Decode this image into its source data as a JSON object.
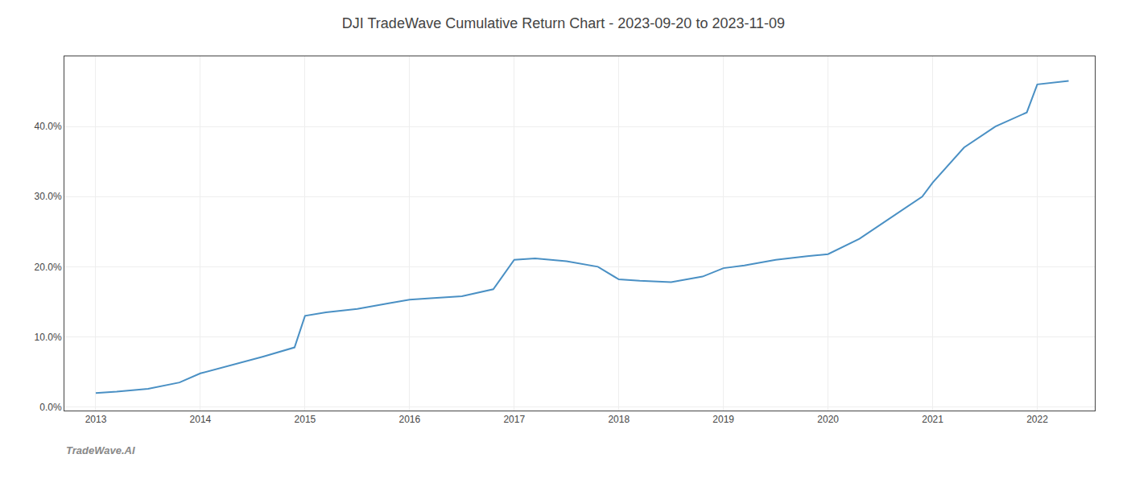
{
  "chart_data": {
    "type": "line",
    "title": "DJI TradeWave Cumulative Return Chart - 2023-09-20 to 2023-11-09",
    "annotations": [
      "TradeWave.AI"
    ],
    "x": [
      2013.0,
      2013.2,
      2013.5,
      2013.8,
      2014.0,
      2014.3,
      2014.6,
      2014.9,
      2015.0,
      2015.2,
      2015.5,
      2015.8,
      2016.0,
      2016.2,
      2016.5,
      2016.8,
      2017.0,
      2017.2,
      2017.5,
      2017.8,
      2018.0,
      2018.2,
      2018.5,
      2018.8,
      2019.0,
      2019.2,
      2019.5,
      2019.8,
      2020.0,
      2020.3,
      2020.6,
      2020.9,
      2021.0,
      2021.3,
      2021.6,
      2021.9,
      2022.0,
      2022.3
    ],
    "values": [
      0.02,
      0.022,
      0.026,
      0.035,
      0.048,
      0.06,
      0.072,
      0.085,
      0.13,
      0.135,
      0.14,
      0.148,
      0.153,
      0.155,
      0.158,
      0.168,
      0.21,
      0.212,
      0.208,
      0.2,
      0.182,
      0.18,
      0.178,
      0.186,
      0.198,
      0.202,
      0.21,
      0.215,
      0.218,
      0.24,
      0.27,
      0.3,
      0.32,
      0.37,
      0.4,
      0.42,
      0.46,
      0.465
    ],
    "color": "#4a90c4",
    "xlim": [
      2012.7,
      2022.55
    ],
    "ylim": [
      -0.005,
      0.5
    ],
    "xticks": [
      2013,
      2014,
      2015,
      2016,
      2017,
      2018,
      2019,
      2020,
      2021,
      2022
    ],
    "yticks": [
      {
        "value": 0.0,
        "label": "0.0%"
      },
      {
        "value": 0.1,
        "label": "10.0%"
      },
      {
        "value": 0.2,
        "label": "20.0%"
      },
      {
        "value": 0.3,
        "label": "30.0%"
      },
      {
        "value": 0.4,
        "label": "40.0%"
      }
    ],
    "grid": true
  }
}
